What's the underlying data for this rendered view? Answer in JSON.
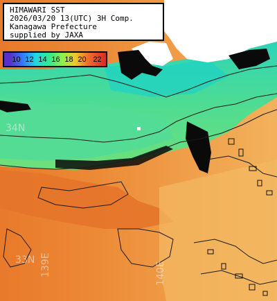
{
  "info": {
    "lines": [
      "HIMAWARI SST",
      "2026/03/20 13(UTC) 3H Comp.",
      "Kanagawa Prefecture",
      "supplied by JAXA"
    ]
  },
  "color_scale": {
    "ticks": [
      "10",
      "12",
      "14",
      "16",
      "18",
      "20",
      "22"
    ],
    "colors": [
      "#5a2fc8",
      "#2f7dff",
      "#25d6e0",
      "#35e890",
      "#8ef04a",
      "#f0c82e",
      "#f06a2c",
      "#d82a2a"
    ]
  },
  "grid_labels": {
    "lat_34": "34N",
    "lat_33": "33N",
    "lon_139": "139E",
    "lon_140": "140E"
  },
  "colors": {
    "land": "#ffffff",
    "cloud": "#0a0a0a",
    "cool_water": "#36d6aa",
    "mid_water": "#62e07e",
    "warm_water": "#efa04e",
    "warmest_water": "#e8822e",
    "contour": "#1a1a1a"
  }
}
